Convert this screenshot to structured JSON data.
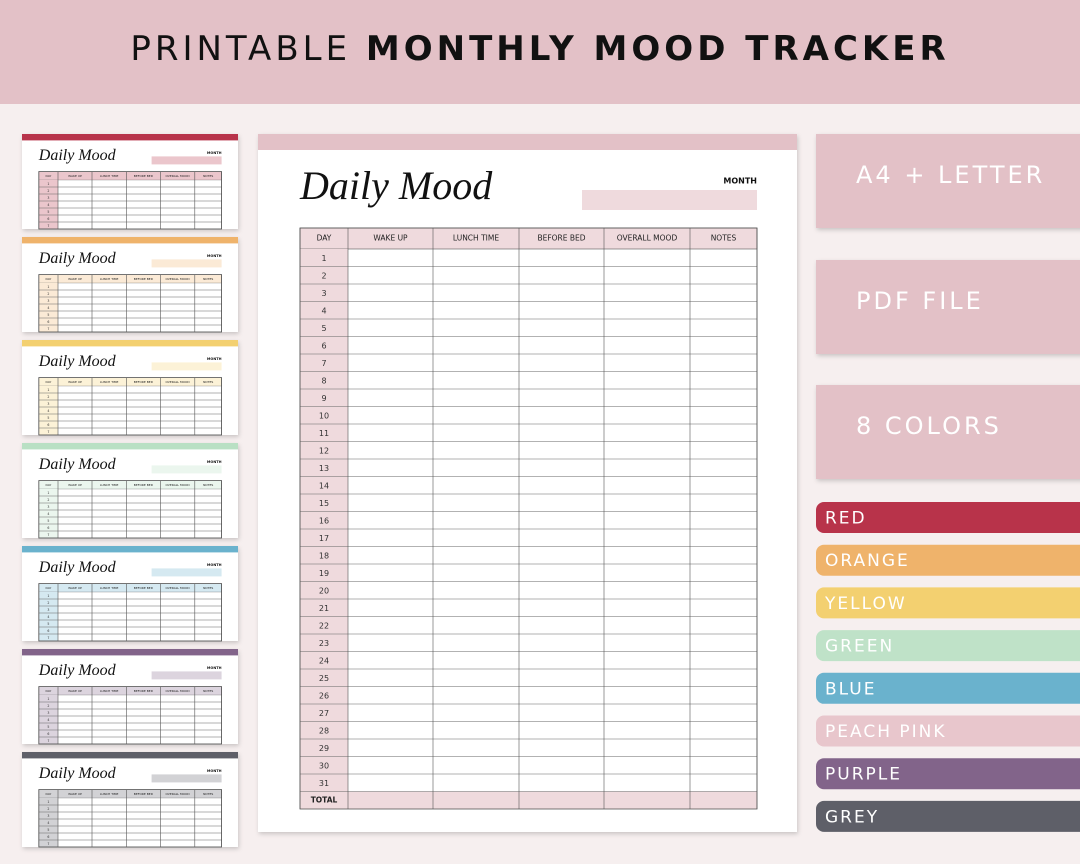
{
  "header": {
    "light": "PRINTABLE",
    "bold": "MONTHLY MOOD TRACKER",
    "color": "#e3c1c7"
  },
  "sheet": {
    "title": "Daily Mood",
    "month_label": "MONTH",
    "color": "#e3c1c7",
    "tint": "#efdadd",
    "columns": [
      "DAY",
      "WAKE UP",
      "LUNCH TIME",
      "BEFORE BED",
      "OVERALL MOOD",
      "NOTES"
    ],
    "days": [
      1,
      2,
      3,
      4,
      5,
      6,
      7,
      8,
      9,
      10,
      11,
      12,
      13,
      14,
      15,
      16,
      17,
      18,
      19,
      20,
      21,
      22,
      23,
      24,
      25,
      26,
      27,
      28,
      29,
      30,
      31
    ],
    "total": "TOTAL"
  },
  "previews": [
    "#b8334a",
    "#efb36b",
    "#f3d070",
    "#b9e0c4",
    "#6ab2cd",
    "#82648a",
    "#5e5f68"
  ],
  "features": [
    "A4 + LETTER",
    "PDF FILE",
    "8 COLORS"
  ],
  "colors": [
    {
      "name": "RED",
      "color": "#b8334a"
    },
    {
      "name": "ORANGE",
      "color": "#efb36b"
    },
    {
      "name": "YELLOW",
      "color": "#f3d070"
    },
    {
      "name": "GREEN",
      "color": "#bfe2c8"
    },
    {
      "name": "BLUE",
      "color": "#6ab2cd"
    },
    {
      "name": "PEACH PINK",
      "color": "#e8c6cc"
    },
    {
      "name": "PURPLE",
      "color": "#82648a"
    },
    {
      "name": "GREY",
      "color": "#5e5f68"
    }
  ]
}
